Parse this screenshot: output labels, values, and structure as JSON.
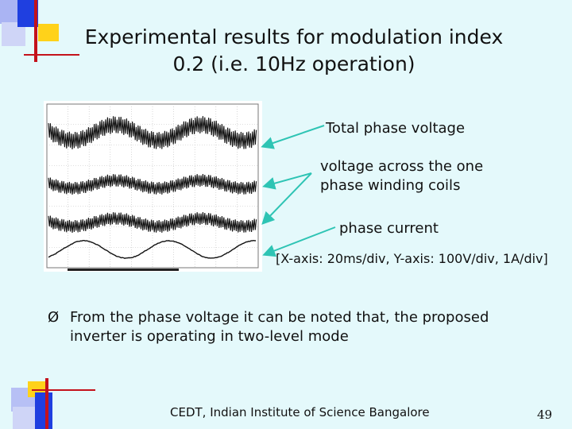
{
  "slide": {
    "title_line1": "Experimental results for modulation index",
    "title_line2": "0.2 (i.e. 10Hz operation)",
    "labels": {
      "total_phase_voltage": "Total phase voltage",
      "coil_voltage_line1": "voltage across the one",
      "coil_voltage_line2": "phase winding coils",
      "phase_current": "phase current"
    },
    "axis_note": "[X-axis: 20ms/div, Y-axis: 100V/div, 1A/div]",
    "bullet": {
      "marker": "Ø",
      "text": "From the phase voltage it can be noted that, the proposed inverter is operating in two-level mode"
    },
    "footer": "CEDT, Indian Institute of Science Bangalore",
    "page_number": "49"
  },
  "colors": {
    "background": "#e4f9fb",
    "accent_blue": "#1f3fe0",
    "accent_yellow": "#ffd21a",
    "accent_red": "#c4121b",
    "arrow_cyan": "#2ec4b4"
  }
}
